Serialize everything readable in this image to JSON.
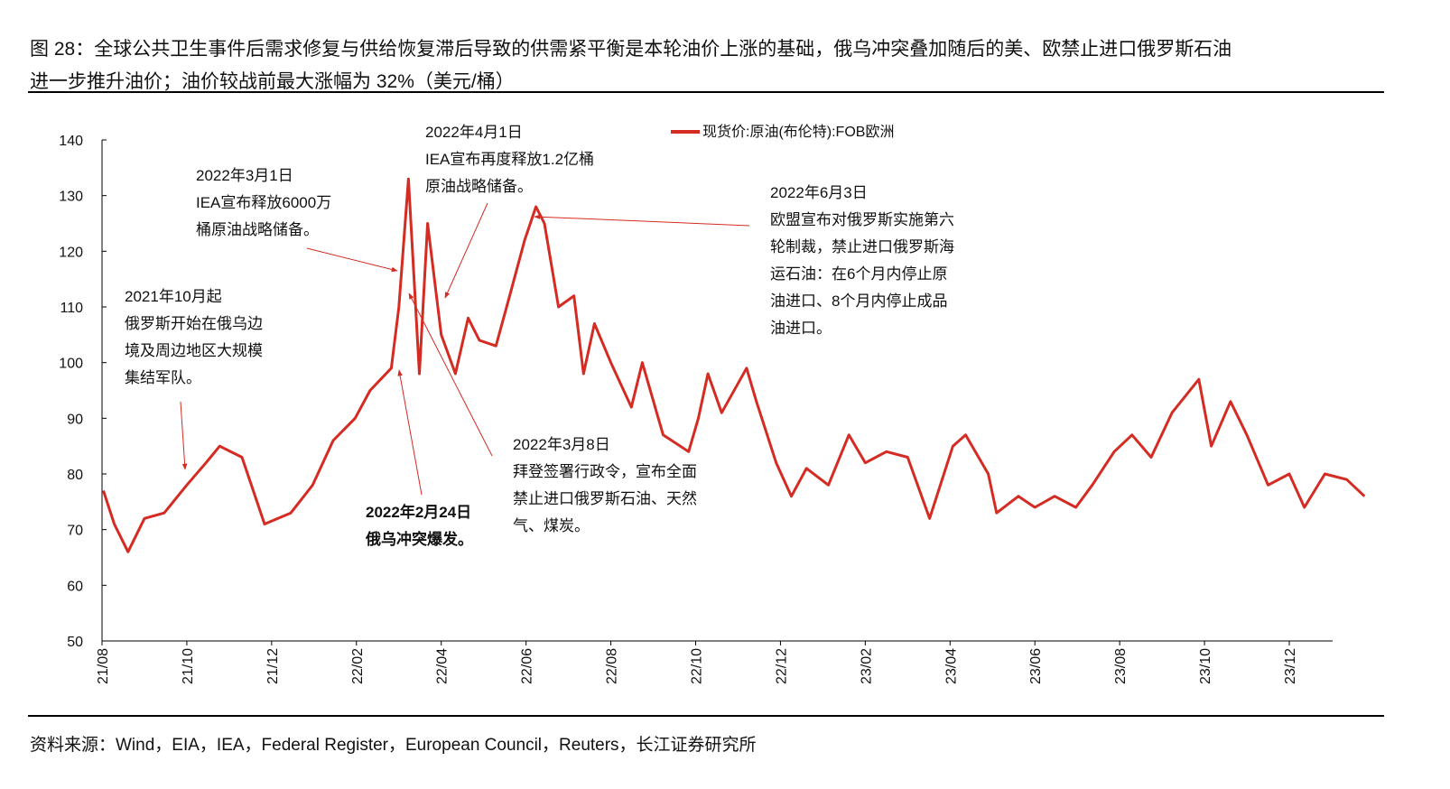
{
  "title_line1": "图 28：全球公共卫生事件后需求修复与供给恢复滞后导致的供需紧平衡是本轮油价上涨的基础，俄乌冲突叠加随后的美、欧禁止进口俄罗斯石油",
  "title_line2": "进一步推升油价；油价较战前最大涨幅为 32%（美元/桶）",
  "source": "资料来源：Wind，EIA，IEA，Federal Register，European Council，Reuters，长江证券研究所",
  "chart_data": {
    "type": "line",
    "title": "",
    "xlabel": "",
    "ylabel": "",
    "ylim": [
      50,
      140
    ],
    "yticks": [
      "140",
      "130",
      "120",
      "110",
      "100",
      "90",
      "80",
      "70",
      "60",
      "50"
    ],
    "xticks": [
      "21/08",
      "21/10",
      "21/12",
      "22/02",
      "22/04",
      "22/06",
      "22/08",
      "22/10",
      "22/12",
      "23/02",
      "23/04",
      "23/06",
      "23/08",
      "23/10",
      "23/12"
    ],
    "grid": false,
    "legend_position": "top",
    "color": "#d42b23",
    "series": [
      {
        "name": "现货价:原油(布伦特):FOB欧洲",
        "x": [
          "2021-08-02",
          "2021-08-10",
          "2021-08-20",
          "2021-09-01",
          "2021-09-15",
          "2021-10-01",
          "2021-10-15",
          "2021-10-25",
          "2021-11-10",
          "2021-11-26",
          "2021-12-15",
          "2021-12-31",
          "2022-01-15",
          "2022-01-31",
          "2022-02-10",
          "2022-02-24",
          "2022-03-01",
          "2022-03-08",
          "2022-03-16",
          "2022-03-22",
          "2022-04-01",
          "2022-04-11",
          "2022-04-20",
          "2022-04-28",
          "2022-05-10",
          "2022-05-20",
          "2022-05-31",
          "2022-06-08",
          "2022-06-14",
          "2022-06-24",
          "2022-07-05",
          "2022-07-12",
          "2022-07-20",
          "2022-08-01",
          "2022-08-16",
          "2022-08-24",
          "2022-09-08",
          "2022-09-26",
          "2022-10-03",
          "2022-10-10",
          "2022-10-20",
          "2022-11-07",
          "2022-11-14",
          "2022-11-28",
          "2022-12-09",
          "2022-12-20",
          "2023-01-05",
          "2023-01-20",
          "2023-02-01",
          "2023-02-15",
          "2023-03-01",
          "2023-03-17",
          "2023-04-03",
          "2023-04-12",
          "2023-04-28",
          "2023-05-04",
          "2023-05-20",
          "2023-06-01",
          "2023-06-15",
          "2023-06-30",
          "2023-07-12",
          "2023-07-28",
          "2023-08-10",
          "2023-08-24",
          "2023-09-08",
          "2023-09-27",
          "2023-10-06",
          "2023-10-20",
          "2023-11-01",
          "2023-11-16",
          "2023-12-01",
          "2023-12-12",
          "2023-12-27",
          "2024-01-12",
          "2024-01-25"
        ],
        "values": [
          77,
          71,
          66,
          72,
          73,
          78,
          82,
          85,
          83,
          71,
          73,
          78,
          86,
          90,
          95,
          99,
          110,
          133,
          98,
          125,
          105,
          98,
          108,
          104,
          103,
          112,
          122,
          128,
          125,
          110,
          112,
          98,
          107,
          100,
          92,
          100,
          87,
          84,
          90,
          98,
          91,
          99,
          93,
          82,
          76,
          81,
          78,
          87,
          82,
          84,
          83,
          72,
          85,
          87,
          80,
          73,
          76,
          74,
          76,
          74,
          78,
          84,
          87,
          83,
          91,
          97,
          85,
          93,
          87,
          78,
          80,
          74,
          80,
          79,
          76
        ]
      }
    ],
    "annotations": [
      {
        "lines": [
          "2021年10月起",
          "俄罗斯开始在俄乌边",
          "境及周边地区大规模",
          "集结军队。"
        ],
        "bold": false
      },
      {
        "lines": [
          "2022年3月1日",
          "IEA宣布释放6000万",
          "桶原油战略储备。"
        ],
        "bold": false
      },
      {
        "lines": [
          "2022年4月1日",
          "IEA宣布再度释放1.2亿桶",
          "原油战略储备。"
        ],
        "bold": false
      },
      {
        "lines": [
          "2022年6月3日",
          "欧盟宣布对俄罗斯实施第六",
          "轮制裁，禁止进口俄罗斯海",
          "运石油：在6个月内停止原",
          "油进口、8个月内停止成品",
          "油进口。"
        ],
        "bold": false
      },
      {
        "lines": [
          "2022年3月8日",
          "拜登签署行政令，宣布全面",
          "禁止进口俄罗斯石油、天然",
          "气、煤炭。"
        ],
        "bold": false
      },
      {
        "lines": [
          "2022年2月24日",
          "俄乌冲突爆发。"
        ],
        "bold": true
      }
    ]
  }
}
